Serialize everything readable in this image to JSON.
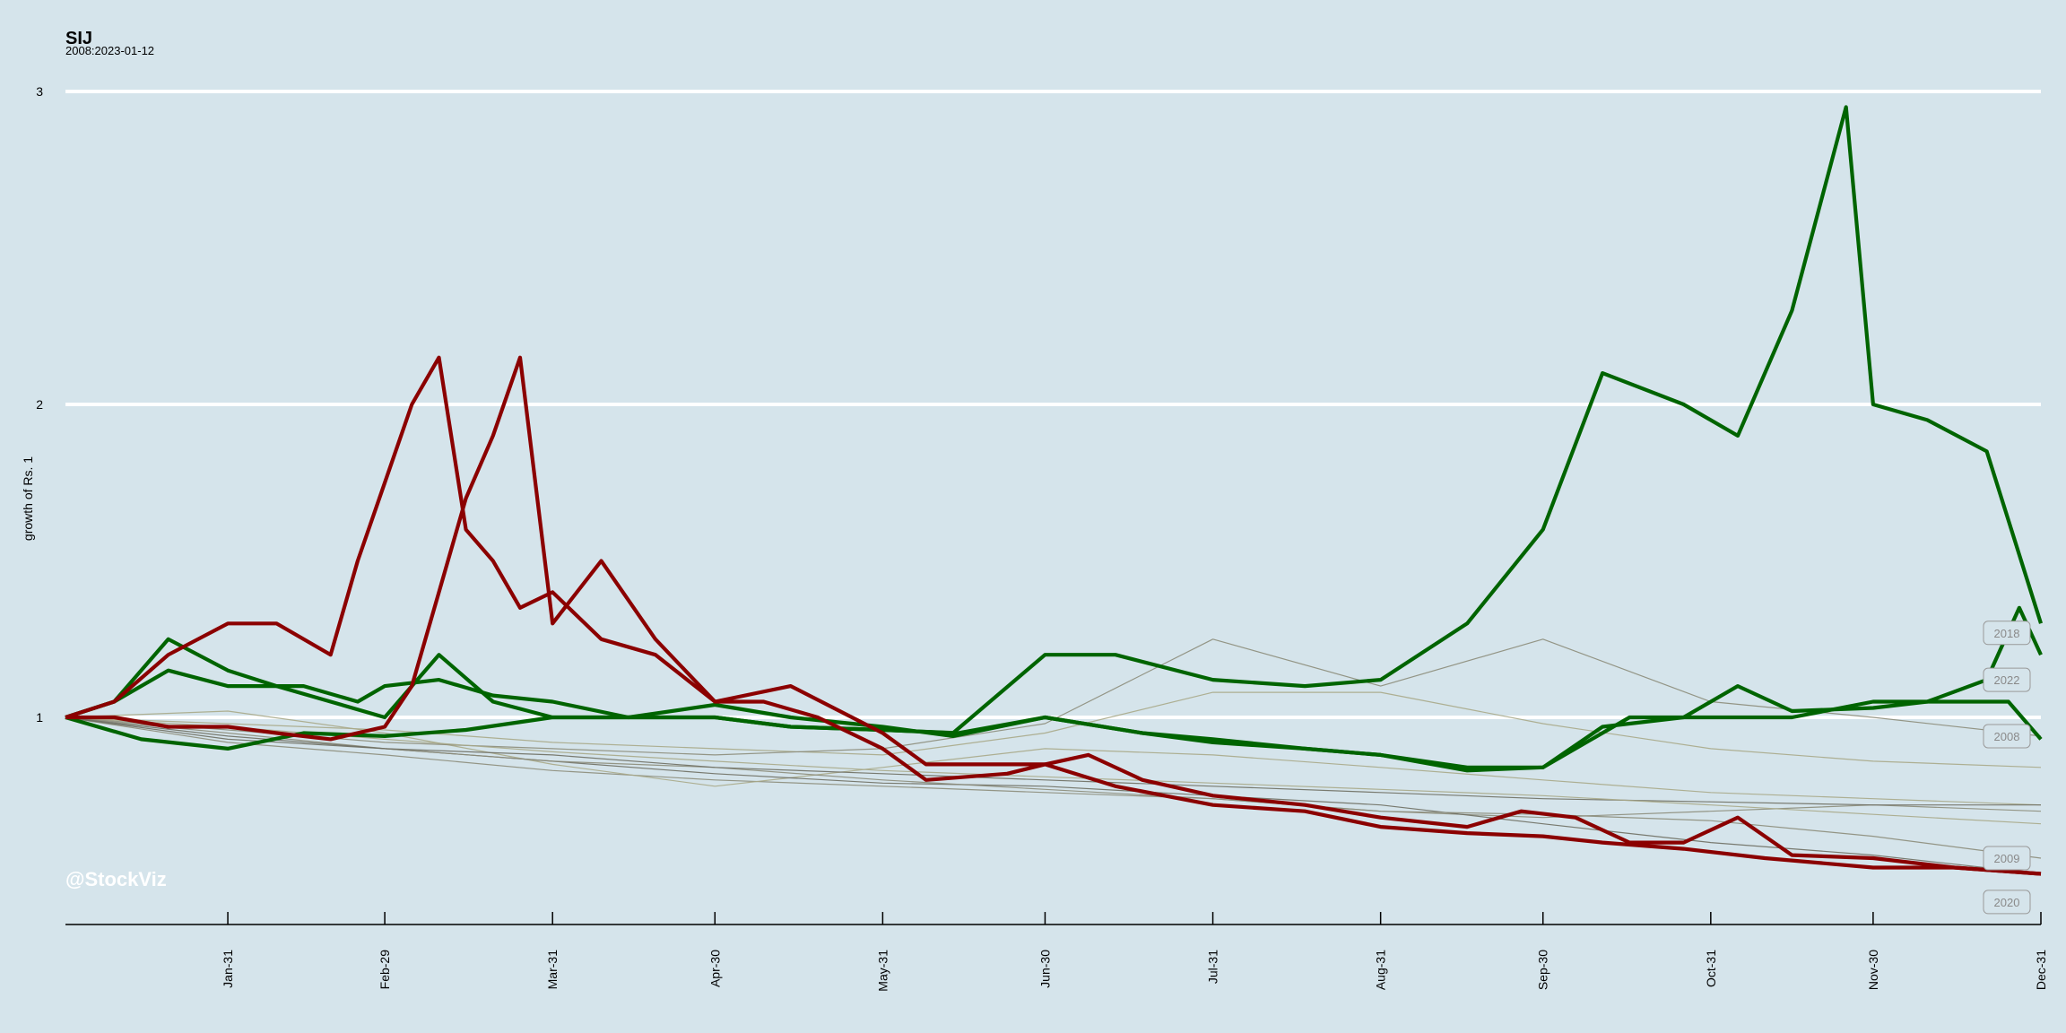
{
  "chart_data": {
    "type": "line",
    "title": "SIJ",
    "subtitle": "2008:2023-01-12",
    "xlabel": "",
    "ylabel": "growth of Rs. 1",
    "watermark": "@StockViz",
    "ylim": [
      0.35,
      3.05
    ],
    "yticks": [
      1,
      2,
      3
    ],
    "ytick_labels": [
      "1",
      "2",
      "3"
    ],
    "x_domain": [
      "Jan-01",
      "Dec-31"
    ],
    "xticks": [
      {
        "label": "Jan-31",
        "day": 31
      },
      {
        "label": "Feb-29",
        "day": 60
      },
      {
        "label": "Mar-31",
        "day": 91
      },
      {
        "label": "Apr-30",
        "day": 121
      },
      {
        "label": "May-31",
        "day": 152
      },
      {
        "label": "Jun-30",
        "day": 182
      },
      {
        "label": "Jul-31",
        "day": 213
      },
      {
        "label": "Aug-31",
        "day": 244
      },
      {
        "label": "Sep-30",
        "day": 274
      },
      {
        "label": "Oct-31",
        "day": 305
      },
      {
        "label": "Nov-30",
        "day": 335
      },
      {
        "label": "Dec-31",
        "day": 366
      }
    ],
    "grid": true,
    "colors": {
      "up": "#006400",
      "down": "#8b0000",
      "faint": "#8c8c7a",
      "faint2": "#a8a888",
      "faint3": "#6e6e62"
    },
    "series": [
      {
        "style": "faint",
        "x": [
          1,
          31,
          60,
          91,
          121,
          152,
          182,
          213,
          244,
          274,
          305,
          335,
          366
        ],
        "y": [
          1.0,
          0.92,
          0.88,
          0.83,
          0.8,
          0.78,
          0.76,
          0.74,
          0.7,
          0.68,
          0.7,
          0.72,
          0.7
        ]
      },
      {
        "style": "faint2",
        "x": [
          1,
          31,
          60,
          91,
          121,
          152,
          182,
          213,
          244,
          274,
          305,
          335,
          366
        ],
        "y": [
          1.0,
          1.02,
          0.95,
          0.85,
          0.78,
          0.84,
          0.9,
          0.88,
          0.84,
          0.8,
          0.76,
          0.74,
          0.72
        ]
      },
      {
        "style": "faint3",
        "x": [
          1,
          31,
          60,
          91,
          121,
          152,
          182,
          213,
          244,
          274,
          305,
          335,
          366
        ],
        "y": [
          1.0,
          0.93,
          0.9,
          0.86,
          0.82,
          0.79,
          0.78,
          0.75,
          0.72,
          0.66,
          0.6,
          0.56,
          0.5
        ]
      },
      {
        "style": "faint",
        "x": [
          1,
          31,
          60,
          91,
          121,
          152,
          182,
          213,
          244,
          274,
          305,
          335,
          366
        ],
        "y": [
          1.0,
          0.95,
          0.9,
          0.86,
          0.84,
          0.8,
          0.77,
          0.74,
          0.7,
          0.69,
          0.67,
          0.62,
          0.55
        ]
      },
      {
        "style": "faint2",
        "x": [
          1,
          31,
          60,
          91,
          121,
          152,
          182,
          213,
          244,
          274,
          305,
          335,
          366
        ],
        "y": [
          1.0,
          0.98,
          0.96,
          0.92,
          0.9,
          0.88,
          0.95,
          1.08,
          1.08,
          0.98,
          0.9,
          0.86,
          0.84
        ]
      },
      {
        "style": "faint",
        "x": [
          1,
          31,
          60,
          91,
          121,
          152,
          182,
          213,
          244,
          274,
          305,
          335,
          366
        ],
        "y": [
          1.0,
          0.96,
          0.92,
          0.9,
          0.88,
          0.9,
          0.98,
          1.25,
          1.1,
          1.25,
          1.05,
          1.0,
          0.94
        ]
      },
      {
        "style": "faint3",
        "x": [
          1,
          31,
          60,
          91,
          121,
          152,
          182,
          213,
          244,
          274,
          305,
          335,
          366
        ],
        "y": [
          1.0,
          0.94,
          0.9,
          0.88,
          0.84,
          0.82,
          0.8,
          0.78,
          0.76,
          0.74,
          0.73,
          0.72,
          0.72
        ]
      },
      {
        "style": "faint2",
        "x": [
          1,
          31,
          60,
          91,
          121,
          152,
          182,
          213,
          244,
          274,
          305,
          335,
          366
        ],
        "y": [
          1.0,
          0.97,
          0.93,
          0.89,
          0.86,
          0.83,
          0.81,
          0.79,
          0.77,
          0.75,
          0.72,
          0.69,
          0.66
        ]
      },
      {
        "style": "up",
        "x": [
          1,
          10,
          20,
          31,
          45,
          55,
          60,
          70,
          80,
          91,
          105,
          121,
          135,
          152,
          165,
          182,
          195,
          213,
          230,
          244,
          260,
          274,
          285,
          300,
          310,
          320,
          330,
          335,
          345,
          356,
          366
        ],
        "y": [
          1.0,
          1.05,
          1.15,
          1.1,
          1.1,
          1.05,
          1.1,
          1.12,
          1.07,
          1.05,
          1.0,
          1.0,
          0.97,
          0.96,
          0.95,
          1.2,
          1.2,
          1.12,
          1.1,
          1.12,
          1.3,
          1.6,
          2.1,
          2.0,
          1.9,
          2.3,
          2.95,
          2.0,
          1.95,
          1.85,
          1.3
        ]
      },
      {
        "style": "up",
        "x": [
          1,
          15,
          31,
          45,
          60,
          75,
          91,
          105,
          121,
          135,
          152,
          165,
          182,
          200,
          213,
          230,
          244,
          260,
          274,
          285,
          300,
          310,
          320,
          335,
          345,
          356,
          362,
          366
        ],
        "y": [
          1.0,
          0.93,
          0.9,
          0.95,
          0.94,
          0.96,
          1.0,
          1.0,
          1.04,
          1.0,
          0.97,
          0.94,
          1.0,
          0.95,
          0.92,
          0.9,
          0.88,
          0.84,
          0.84,
          0.97,
          1.0,
          1.1,
          1.02,
          1.03,
          1.05,
          1.12,
          1.35,
          1.2
        ]
      },
      {
        "style": "up",
        "x": [
          1,
          10,
          20,
          31,
          40,
          50,
          60,
          70,
          80,
          91,
          105,
          121,
          135,
          152,
          166,
          182,
          200,
          213,
          230,
          244,
          260,
          274,
          290,
          305,
          320,
          335,
          350,
          360,
          366
        ],
        "y": [
          1.0,
          1.05,
          1.25,
          1.15,
          1.1,
          1.05,
          1.0,
          1.2,
          1.05,
          1.0,
          1.0,
          1.0,
          0.97,
          0.96,
          0.95,
          1.0,
          0.95,
          0.93,
          0.9,
          0.88,
          0.83,
          0.84,
          1.0,
          1.0,
          1.0,
          1.05,
          1.05,
          1.05,
          0.93
        ]
      },
      {
        "style": "down",
        "x": [
          1,
          10,
          20,
          31,
          40,
          50,
          55,
          60,
          65,
          70,
          75,
          80,
          85,
          91,
          100,
          110,
          121,
          135,
          152,
          160,
          175,
          182,
          195,
          213,
          230,
          244,
          260,
          274,
          285,
          300,
          315,
          335,
          350,
          366
        ],
        "y": [
          1.0,
          1.05,
          1.2,
          1.3,
          1.3,
          1.2,
          1.5,
          1.75,
          2.0,
          2.15,
          1.6,
          1.5,
          1.35,
          1.4,
          1.25,
          1.2,
          1.05,
          1.1,
          0.95,
          0.85,
          0.85,
          0.85,
          0.78,
          0.72,
          0.7,
          0.65,
          0.63,
          0.62,
          0.6,
          0.58,
          0.55,
          0.52,
          0.52,
          0.5
        ]
      },
      {
        "style": "down",
        "x": [
          1,
          10,
          20,
          31,
          40,
          50,
          60,
          65,
          70,
          75,
          80,
          85,
          91,
          100,
          110,
          121,
          130,
          140,
          152,
          160,
          175,
          182,
          190,
          200,
          213,
          230,
          244,
          260,
          270,
          280,
          290,
          300,
          310,
          320,
          335,
          350,
          366
        ],
        "y": [
          1.0,
          1.0,
          0.97,
          0.97,
          0.95,
          0.93,
          0.97,
          1.1,
          1.4,
          1.7,
          1.9,
          2.15,
          1.3,
          1.5,
          1.25,
          1.05,
          1.05,
          1.0,
          0.9,
          0.8,
          0.82,
          0.85,
          0.88,
          0.8,
          0.75,
          0.72,
          0.68,
          0.65,
          0.7,
          0.68,
          0.6,
          0.6,
          0.68,
          0.56,
          0.55,
          0.52,
          0.5
        ]
      }
    ],
    "year_labels": [
      {
        "label": "2018",
        "y": 1.27
      },
      {
        "label": "2022",
        "y": 1.12
      },
      {
        "label": "2008",
        "y": 0.94
      },
      {
        "label": "2009",
        "y": 0.55
      },
      {
        "label": "2020",
        "y": 0.41
      }
    ]
  }
}
